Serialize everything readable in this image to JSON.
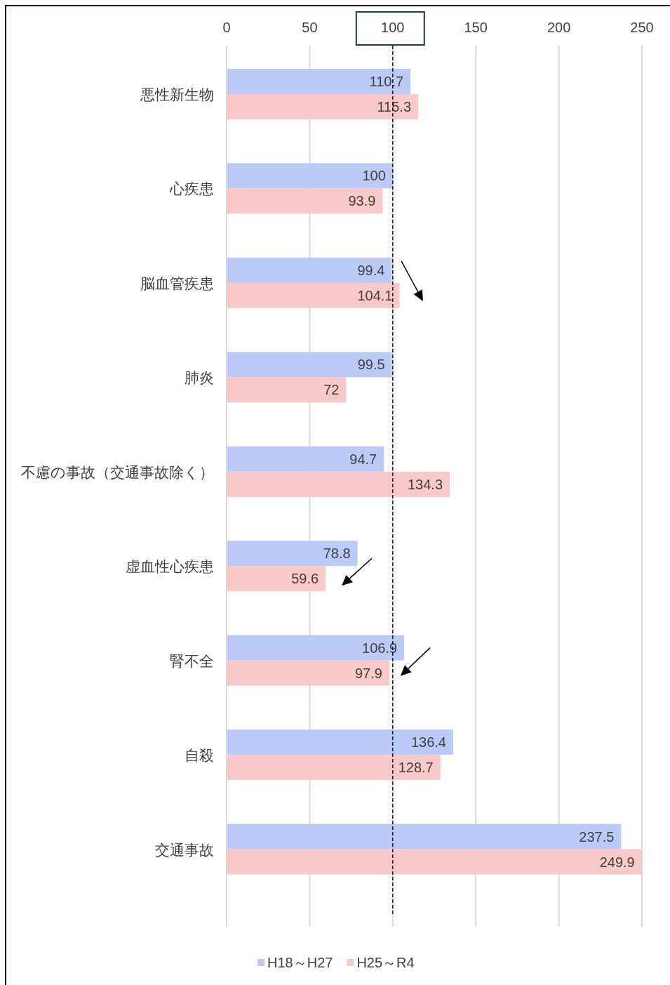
{
  "chart_data": {
    "type": "bar",
    "orientation": "horizontal",
    "categories": [
      "悪性新生物",
      "心疾患",
      "脳血管疾患",
      "肺炎",
      "不慮の事故（交通事故除く）",
      "虚血性心疾患",
      "腎不全",
      "自殺",
      "交通事故"
    ],
    "series": [
      {
        "name": "H18～H27",
        "color": "#bccaf8",
        "values": [
          110.7,
          100,
          99.4,
          99.5,
          94.7,
          78.8,
          106.9,
          136.4,
          237.5
        ]
      },
      {
        "name": "H25～R4",
        "color": "#f9c8c8",
        "values": [
          115.3,
          93.9,
          104.1,
          72,
          134.3,
          59.6,
          97.9,
          128.7,
          249.9
        ]
      }
    ],
    "xlim": [
      0,
      250
    ],
    "xticks": [
      0,
      50,
      100,
      150,
      200,
      250
    ],
    "grid": "x",
    "legend": "bottom",
    "data_labels": true,
    "ref_lines": [
      {
        "axis": "x",
        "value": 100,
        "color": "#000000",
        "line_style": "dashed"
      }
    ]
  }
}
